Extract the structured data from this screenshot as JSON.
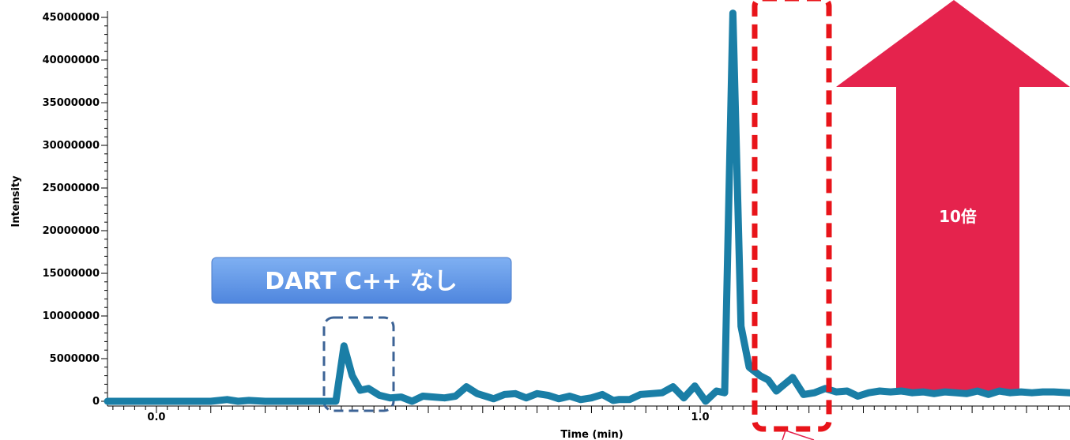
{
  "chart_data": {
    "type": "line",
    "title": "",
    "xlabel": "Time (min)",
    "ylabel": "Intensity",
    "xlim": [
      -0.09,
      1.68
    ],
    "ylim": [
      0,
      45000000
    ],
    "x_ticks": [
      0.0,
      1.0
    ],
    "x_tick_labels": [
      "0.0",
      "1.0"
    ],
    "y_ticks": [
      0,
      5000000,
      10000000,
      15000000,
      20000000,
      25000000,
      30000000,
      35000000,
      40000000,
      45000000
    ],
    "y_tick_labels": [
      "0",
      "5000000",
      "10000000",
      "15000000",
      "20000000",
      "25000000",
      "30000000",
      "35000000",
      "40000000",
      "45000000"
    ],
    "grid": false,
    "legend": "none",
    "series": [
      {
        "color": "#1a7ea6",
        "x": [
          -0.09,
          0.0,
          0.05,
          0.1,
          0.13,
          0.15,
          0.17,
          0.2,
          0.25,
          0.3,
          0.33,
          0.345,
          0.36,
          0.375,
          0.39,
          0.41,
          0.43,
          0.45,
          0.47,
          0.49,
          0.51,
          0.53,
          0.55,
          0.57,
          0.59,
          0.61,
          0.62,
          0.64,
          0.66,
          0.68,
          0.7,
          0.72,
          0.74,
          0.76,
          0.78,
          0.8,
          0.82,
          0.84,
          0.85,
          0.87,
          0.89,
          0.91,
          0.93,
          0.95,
          0.97,
          0.99,
          1.01,
          1.03,
          1.045,
          1.06,
          1.075,
          1.09,
          1.11,
          1.125,
          1.14,
          1.155,
          1.17,
          1.19,
          1.21,
          1.23,
          1.25,
          1.27,
          1.29,
          1.31,
          1.33,
          1.35,
          1.37,
          1.39,
          1.41,
          1.43,
          1.45,
          1.47,
          1.49,
          1.51,
          1.53,
          1.55,
          1.57,
          1.59,
          1.61,
          1.63,
          1.65,
          1.68
        ],
        "values": [
          0,
          0,
          0,
          0,
          200000,
          0,
          100000,
          0,
          0,
          0,
          0,
          6500000,
          3000000,
          1300000,
          1500000,
          700000,
          400000,
          500000,
          0,
          600000,
          500000,
          400000,
          600000,
          1700000,
          900000,
          500000,
          300000,
          800000,
          900000,
          400000,
          900000,
          700000,
          300000,
          600000,
          200000,
          400000,
          800000,
          100000,
          200000,
          200000,
          800000,
          900000,
          1000000,
          1700000,
          400000,
          1800000,
          0,
          1200000,
          1000000,
          45500000,
          8800000,
          4000000,
          3000000,
          2500000,
          1200000,
          2000000,
          2800000,
          800000,
          1000000,
          1500000,
          1100000,
          1200000,
          600000,
          1000000,
          1200000,
          1100000,
          1200000,
          1000000,
          1100000,
          900000,
          1100000,
          1000000,
          900000,
          1200000,
          800000,
          1200000,
          1000000,
          1100000,
          1000000,
          1100000,
          1100000,
          1000000
        ]
      }
    ]
  },
  "annotations": {
    "badge_label": "DART C++ なし",
    "arrow_label": "10倍",
    "colors": {
      "badge": "#5b93e3",
      "blue_box": "#3c6396",
      "red_box": "#e8141a",
      "arrow": "#e5234d"
    }
  }
}
